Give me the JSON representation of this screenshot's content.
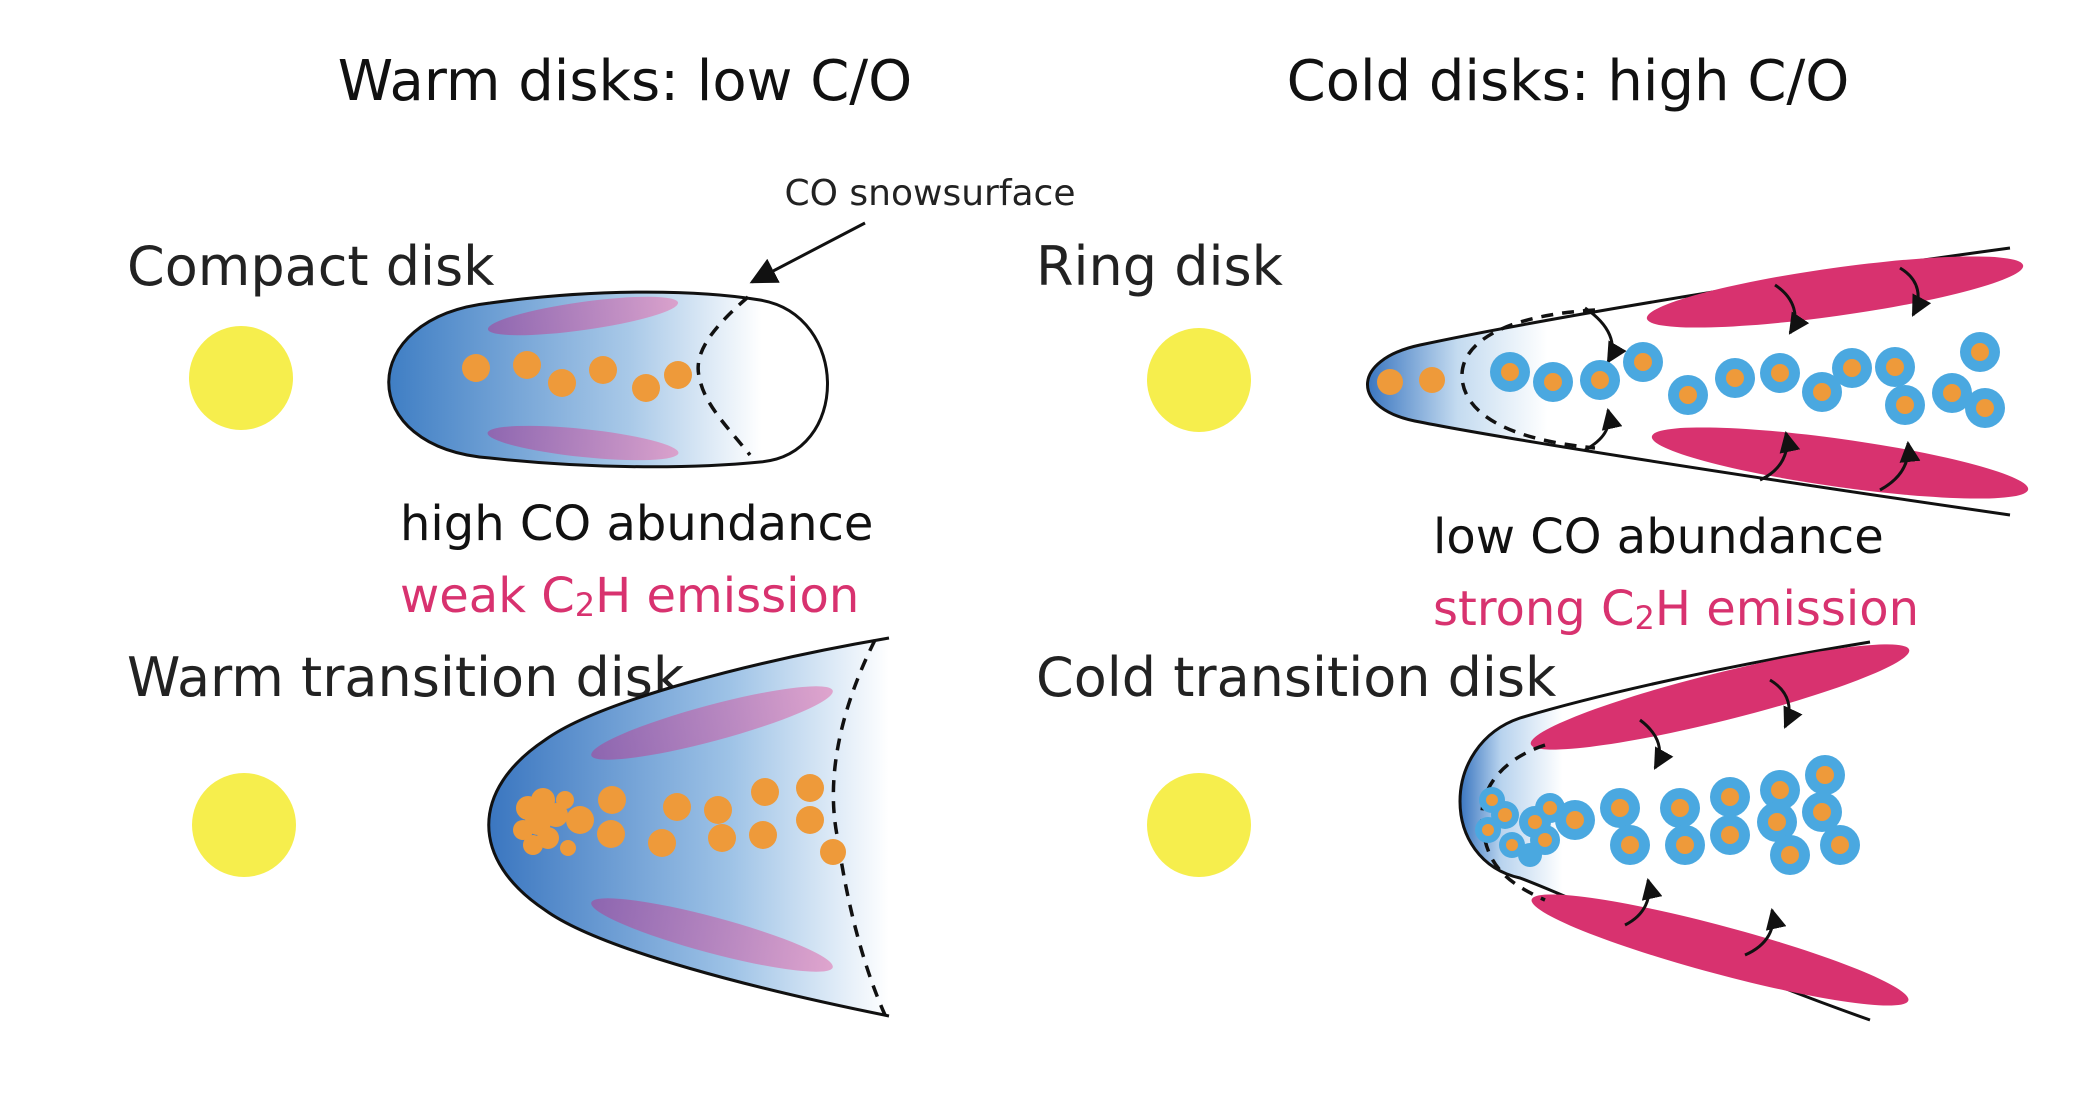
{
  "headings": {
    "warm": "Warm disks: low C/O",
    "cold": "Cold disks: high C/O"
  },
  "panels": {
    "compact": "Compact disk",
    "ring": "Ring disk",
    "warm_transition": "Warm transition disk",
    "cold_transition": "Cold transition disk"
  },
  "annotations": {
    "co_snowsurface": "CO snowsurface",
    "warm_co": "high CO abundance",
    "warm_c2h_prefix": "weak C",
    "warm_c2h_sub": "2",
    "warm_c2h_suffix": "H emission",
    "cold_co": "low CO abundance",
    "cold_c2h_prefix": "strong C",
    "cold_c2h_sub": "2",
    "cold_c2h_suffix": "H emission"
  },
  "colors": {
    "star": "#f6ee4d",
    "disk_blue": "#3f7ec4",
    "grain_orange": "#ee9a3a",
    "ice_blue": "#4aa8e0",
    "c2h_magenta": "#d8326f",
    "c2h_weak": "#a55aa8",
    "text_magenta": "#d8326f"
  }
}
